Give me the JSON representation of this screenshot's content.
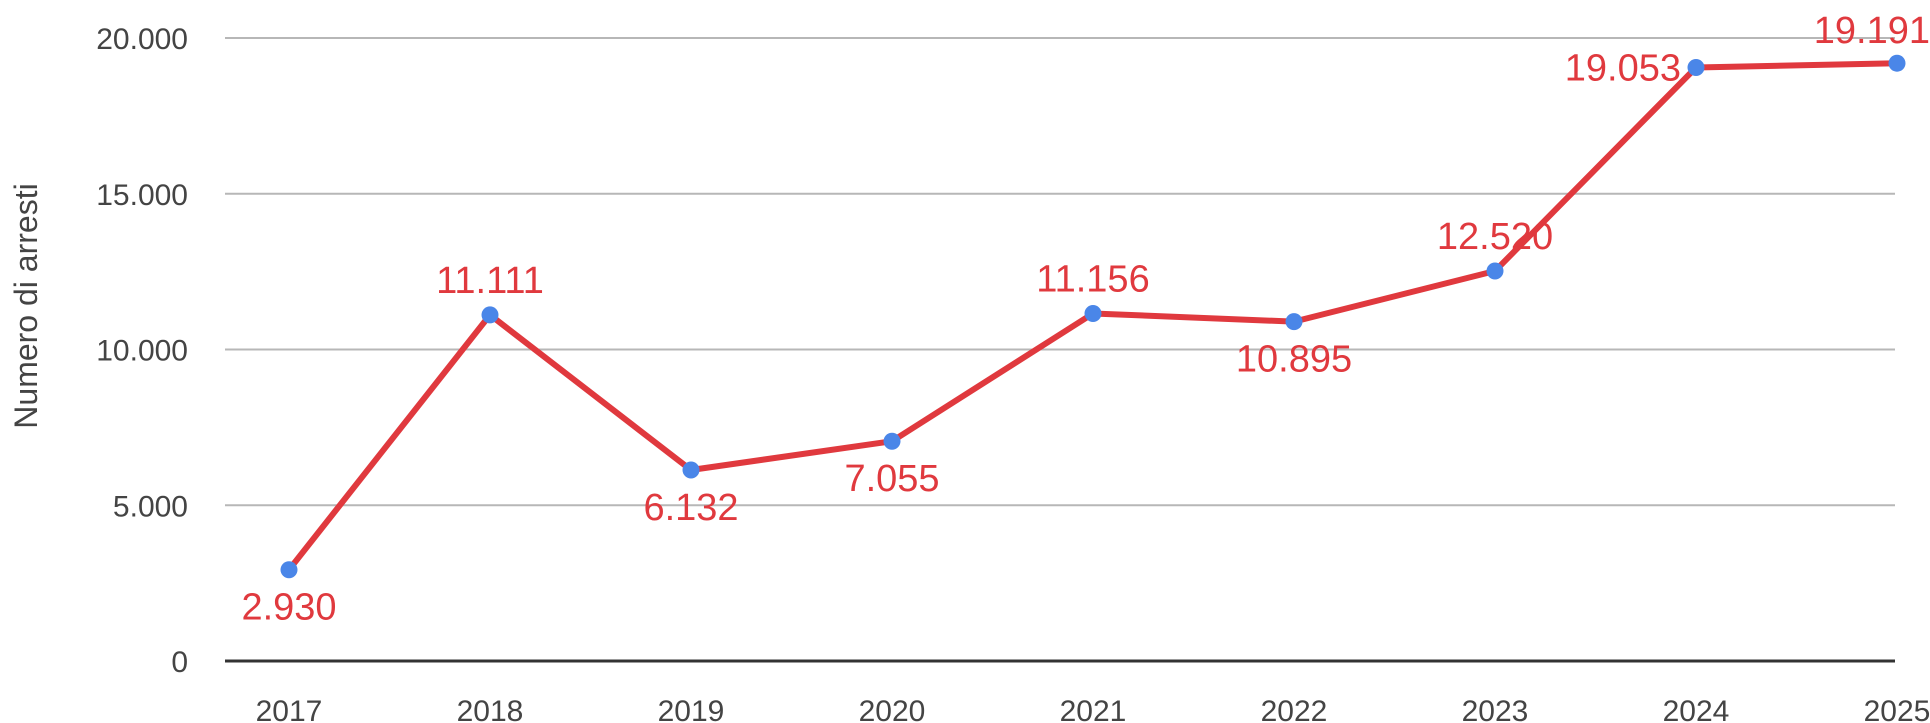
{
  "chart_data": {
    "type": "line",
    "title": "",
    "xlabel": "",
    "ylabel": "Numero di arresti",
    "categories": [
      "2017",
      "2018",
      "2019",
      "2020",
      "2021",
      "2022",
      "2023",
      "2024",
      "2025"
    ],
    "series": [
      {
        "values": [
          2930,
          11111,
          6132,
          7055,
          11156,
          10895,
          12520,
          19053,
          19191
        ],
        "labels": [
          "2.930",
          "11.111",
          "6.132",
          "7.055",
          "11.156",
          "10.895",
          "12.520",
          "19.053",
          "19.191"
        ]
      }
    ],
    "yticks": [
      {
        "value": 0,
        "label": "0"
      },
      {
        "value": 5000,
        "label": "5.000"
      },
      {
        "value": 10000,
        "label": "10.000"
      },
      {
        "value": 15000,
        "label": "15.000"
      },
      {
        "value": 20000,
        "label": "20.000"
      }
    ],
    "ylim": [
      0,
      20000
    ],
    "grid": true,
    "legend": "none",
    "colors": {
      "line": "#e0393e",
      "marker": "#4a86e8",
      "label": "#e0393e",
      "grid": "#b7b7b7",
      "axis": "#333333"
    }
  }
}
